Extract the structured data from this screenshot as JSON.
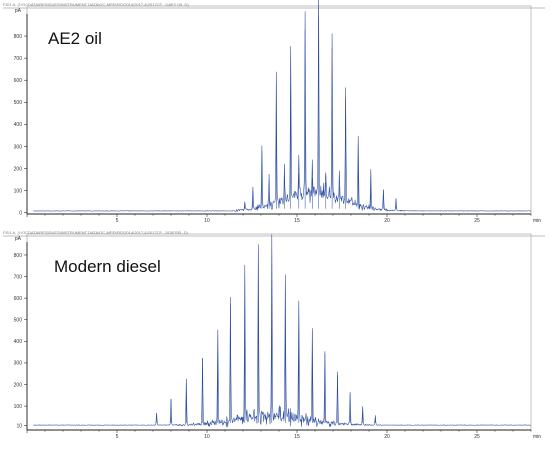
{
  "chart_data": [
    {
      "type": "line",
      "title": "AE2 oil",
      "header": "FID1 A, (I:\\GCDATA\\RESIDUES\\INSTRUMENT DATA\\GC-MPD\\FID\\2014\\2017-4\\2017CF...1\\AE2 OIL.D)",
      "unit_label": "pA",
      "xlim": [
        0,
        28
      ],
      "ylim": [
        -15,
        900
      ],
      "x_ticks": [
        "5",
        "10",
        "15",
        "20",
        "25"
      ],
      "x_tick_values": [
        5,
        10,
        15,
        20,
        25
      ],
      "x_unit": "min",
      "y_ticks": [
        "0",
        "100",
        "200",
        "300",
        "400",
        "500",
        "600",
        "700",
        "800"
      ],
      "y_tick_values": [
        0,
        100,
        200,
        300,
        400,
        500,
        600,
        700,
        800
      ],
      "baseline": 8,
      "hump": {
        "center": 15.9,
        "width": 2.3,
        "height": 85,
        "start": 11.6,
        "end": 22.5
      },
      "peaks": [
        {
          "x": 12.1,
          "y": 40
        },
        {
          "x": 12.55,
          "y": 90
        },
        {
          "x": 13.05,
          "y": 270
        },
        {
          "x": 13.45,
          "y": 130
        },
        {
          "x": 13.85,
          "y": 590
        },
        {
          "x": 14.3,
          "y": 150
        },
        {
          "x": 14.65,
          "y": 700
        },
        {
          "x": 15.1,
          "y": 170
        },
        {
          "x": 15.45,
          "y": 820
        },
        {
          "x": 15.85,
          "y": 150
        },
        {
          "x": 16.2,
          "y": 880
        },
        {
          "x": 16.6,
          "y": 130
        },
        {
          "x": 16.95,
          "y": 740
        },
        {
          "x": 17.35,
          "y": 110
        },
        {
          "x": 17.7,
          "y": 510
        },
        {
          "x": 18.4,
          "y": 310
        },
        {
          "x": 19.1,
          "y": 165
        },
        {
          "x": 19.8,
          "y": 95
        },
        {
          "x": 20.5,
          "y": 55
        }
      ]
    },
    {
      "type": "line",
      "title": "Modern diesel",
      "header": "FID1 A, (I:\\GCDATA\\RESIDUES\\INSTRUMENT DATA\\GC-MPD\\FID\\2014\\2017-4\\2017CF...1\\DIESEL.D)",
      "unit_label": "pA",
      "xlim": [
        0,
        28
      ],
      "ylim": [
        -20,
        860
      ],
      "x_ticks": [
        "5",
        "10",
        "15",
        "20",
        "25"
      ],
      "x_tick_values": [
        5,
        10,
        15,
        20,
        25
      ],
      "x_unit": "min",
      "y_ticks": [
        "10",
        "100",
        "200",
        "300",
        "400",
        "500",
        "600",
        "700",
        "800"
      ],
      "y_tick_values": [
        10,
        100,
        200,
        300,
        400,
        500,
        600,
        700,
        800
      ],
      "baseline": 12,
      "hump": {
        "center": 13.6,
        "width": 2.6,
        "height": 45,
        "start": 6.8,
        "end": 20.2
      },
      "peaks": [
        {
          "x": 7.2,
          "y": 55
        },
        {
          "x": 8.0,
          "y": 120
        },
        {
          "x": 8.85,
          "y": 210
        },
        {
          "x": 9.75,
          "y": 310
        },
        {
          "x": 10.6,
          "y": 425
        },
        {
          "x": 11.3,
          "y": 560
        },
        {
          "x": 12.1,
          "y": 690
        },
        {
          "x": 12.85,
          "y": 800
        },
        {
          "x": 13.6,
          "y": 790
        },
        {
          "x": 14.35,
          "y": 660
        },
        {
          "x": 15.1,
          "y": 560
        },
        {
          "x": 15.85,
          "y": 435
        },
        {
          "x": 16.55,
          "y": 330
        },
        {
          "x": 17.25,
          "y": 230
        },
        {
          "x": 17.95,
          "y": 145
        },
        {
          "x": 18.65,
          "y": 85
        },
        {
          "x": 19.35,
          "y": 45
        }
      ]
    }
  ],
  "colors": {
    "trace": "#26479f",
    "axis": "#222222",
    "frame": "#a9a9a9",
    "header_text": "#7a7a7a"
  }
}
